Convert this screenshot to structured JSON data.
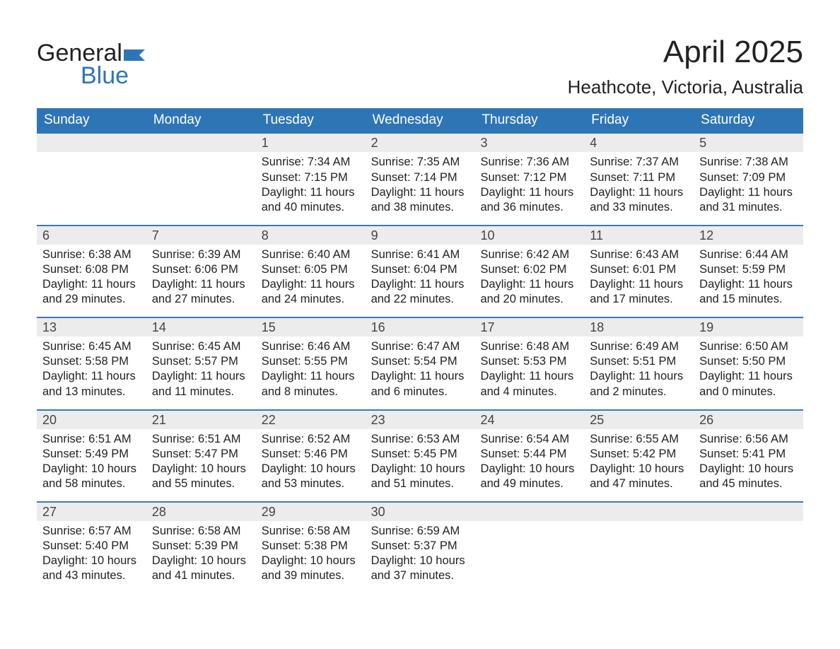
{
  "logo": {
    "top": "General",
    "bottom": "Blue",
    "icon_color": "#2e75b6"
  },
  "title": "April 2025",
  "location": "Heathcote, Victoria, Australia",
  "colors": {
    "header_bg": "#2e75b6",
    "header_text": "#ffffff",
    "strip_bg": "#ececec",
    "week_border": "#3a7ab8",
    "body_text": "#222222"
  },
  "day_headers": [
    "Sunday",
    "Monday",
    "Tuesday",
    "Wednesday",
    "Thursday",
    "Friday",
    "Saturday"
  ],
  "weeks": [
    [
      {
        "day": "",
        "sunrise": "",
        "sunset": "",
        "daylight1": "",
        "daylight2": ""
      },
      {
        "day": "",
        "sunrise": "",
        "sunset": "",
        "daylight1": "",
        "daylight2": ""
      },
      {
        "day": "1",
        "sunrise": "Sunrise: 7:34 AM",
        "sunset": "Sunset: 7:15 PM",
        "daylight1": "Daylight: 11 hours",
        "daylight2": "and 40 minutes."
      },
      {
        "day": "2",
        "sunrise": "Sunrise: 7:35 AM",
        "sunset": "Sunset: 7:14 PM",
        "daylight1": "Daylight: 11 hours",
        "daylight2": "and 38 minutes."
      },
      {
        "day": "3",
        "sunrise": "Sunrise: 7:36 AM",
        "sunset": "Sunset: 7:12 PM",
        "daylight1": "Daylight: 11 hours",
        "daylight2": "and 36 minutes."
      },
      {
        "day": "4",
        "sunrise": "Sunrise: 7:37 AM",
        "sunset": "Sunset: 7:11 PM",
        "daylight1": "Daylight: 11 hours",
        "daylight2": "and 33 minutes."
      },
      {
        "day": "5",
        "sunrise": "Sunrise: 7:38 AM",
        "sunset": "Sunset: 7:09 PM",
        "daylight1": "Daylight: 11 hours",
        "daylight2": "and 31 minutes."
      }
    ],
    [
      {
        "day": "6",
        "sunrise": "Sunrise: 6:38 AM",
        "sunset": "Sunset: 6:08 PM",
        "daylight1": "Daylight: 11 hours",
        "daylight2": "and 29 minutes."
      },
      {
        "day": "7",
        "sunrise": "Sunrise: 6:39 AM",
        "sunset": "Sunset: 6:06 PM",
        "daylight1": "Daylight: 11 hours",
        "daylight2": "and 27 minutes."
      },
      {
        "day": "8",
        "sunrise": "Sunrise: 6:40 AM",
        "sunset": "Sunset: 6:05 PM",
        "daylight1": "Daylight: 11 hours",
        "daylight2": "and 24 minutes."
      },
      {
        "day": "9",
        "sunrise": "Sunrise: 6:41 AM",
        "sunset": "Sunset: 6:04 PM",
        "daylight1": "Daylight: 11 hours",
        "daylight2": "and 22 minutes."
      },
      {
        "day": "10",
        "sunrise": "Sunrise: 6:42 AM",
        "sunset": "Sunset: 6:02 PM",
        "daylight1": "Daylight: 11 hours",
        "daylight2": "and 20 minutes."
      },
      {
        "day": "11",
        "sunrise": "Sunrise: 6:43 AM",
        "sunset": "Sunset: 6:01 PM",
        "daylight1": "Daylight: 11 hours",
        "daylight2": "and 17 minutes."
      },
      {
        "day": "12",
        "sunrise": "Sunrise: 6:44 AM",
        "sunset": "Sunset: 5:59 PM",
        "daylight1": "Daylight: 11 hours",
        "daylight2": "and 15 minutes."
      }
    ],
    [
      {
        "day": "13",
        "sunrise": "Sunrise: 6:45 AM",
        "sunset": "Sunset: 5:58 PM",
        "daylight1": "Daylight: 11 hours",
        "daylight2": "and 13 minutes."
      },
      {
        "day": "14",
        "sunrise": "Sunrise: 6:45 AM",
        "sunset": "Sunset: 5:57 PM",
        "daylight1": "Daylight: 11 hours",
        "daylight2": "and 11 minutes."
      },
      {
        "day": "15",
        "sunrise": "Sunrise: 6:46 AM",
        "sunset": "Sunset: 5:55 PM",
        "daylight1": "Daylight: 11 hours",
        "daylight2": "and 8 minutes."
      },
      {
        "day": "16",
        "sunrise": "Sunrise: 6:47 AM",
        "sunset": "Sunset: 5:54 PM",
        "daylight1": "Daylight: 11 hours",
        "daylight2": "and 6 minutes."
      },
      {
        "day": "17",
        "sunrise": "Sunrise: 6:48 AM",
        "sunset": "Sunset: 5:53 PM",
        "daylight1": "Daylight: 11 hours",
        "daylight2": "and 4 minutes."
      },
      {
        "day": "18",
        "sunrise": "Sunrise: 6:49 AM",
        "sunset": "Sunset: 5:51 PM",
        "daylight1": "Daylight: 11 hours",
        "daylight2": "and 2 minutes."
      },
      {
        "day": "19",
        "sunrise": "Sunrise: 6:50 AM",
        "sunset": "Sunset: 5:50 PM",
        "daylight1": "Daylight: 11 hours",
        "daylight2": "and 0 minutes."
      }
    ],
    [
      {
        "day": "20",
        "sunrise": "Sunrise: 6:51 AM",
        "sunset": "Sunset: 5:49 PM",
        "daylight1": "Daylight: 10 hours",
        "daylight2": "and 58 minutes."
      },
      {
        "day": "21",
        "sunrise": "Sunrise: 6:51 AM",
        "sunset": "Sunset: 5:47 PM",
        "daylight1": "Daylight: 10 hours",
        "daylight2": "and 55 minutes."
      },
      {
        "day": "22",
        "sunrise": "Sunrise: 6:52 AM",
        "sunset": "Sunset: 5:46 PM",
        "daylight1": "Daylight: 10 hours",
        "daylight2": "and 53 minutes."
      },
      {
        "day": "23",
        "sunrise": "Sunrise: 6:53 AM",
        "sunset": "Sunset: 5:45 PM",
        "daylight1": "Daylight: 10 hours",
        "daylight2": "and 51 minutes."
      },
      {
        "day": "24",
        "sunrise": "Sunrise: 6:54 AM",
        "sunset": "Sunset: 5:44 PM",
        "daylight1": "Daylight: 10 hours",
        "daylight2": "and 49 minutes."
      },
      {
        "day": "25",
        "sunrise": "Sunrise: 6:55 AM",
        "sunset": "Sunset: 5:42 PM",
        "daylight1": "Daylight: 10 hours",
        "daylight2": "and 47 minutes."
      },
      {
        "day": "26",
        "sunrise": "Sunrise: 6:56 AM",
        "sunset": "Sunset: 5:41 PM",
        "daylight1": "Daylight: 10 hours",
        "daylight2": "and 45 minutes."
      }
    ],
    [
      {
        "day": "27",
        "sunrise": "Sunrise: 6:57 AM",
        "sunset": "Sunset: 5:40 PM",
        "daylight1": "Daylight: 10 hours",
        "daylight2": "and 43 minutes."
      },
      {
        "day": "28",
        "sunrise": "Sunrise: 6:58 AM",
        "sunset": "Sunset: 5:39 PM",
        "daylight1": "Daylight: 10 hours",
        "daylight2": "and 41 minutes."
      },
      {
        "day": "29",
        "sunrise": "Sunrise: 6:58 AM",
        "sunset": "Sunset: 5:38 PM",
        "daylight1": "Daylight: 10 hours",
        "daylight2": "and 39 minutes."
      },
      {
        "day": "30",
        "sunrise": "Sunrise: 6:59 AM",
        "sunset": "Sunset: 5:37 PM",
        "daylight1": "Daylight: 10 hours",
        "daylight2": "and 37 minutes."
      },
      {
        "day": "",
        "sunrise": "",
        "sunset": "",
        "daylight1": "",
        "daylight2": ""
      },
      {
        "day": "",
        "sunrise": "",
        "sunset": "",
        "daylight1": "",
        "daylight2": ""
      },
      {
        "day": "",
        "sunrise": "",
        "sunset": "",
        "daylight1": "",
        "daylight2": ""
      }
    ]
  ]
}
